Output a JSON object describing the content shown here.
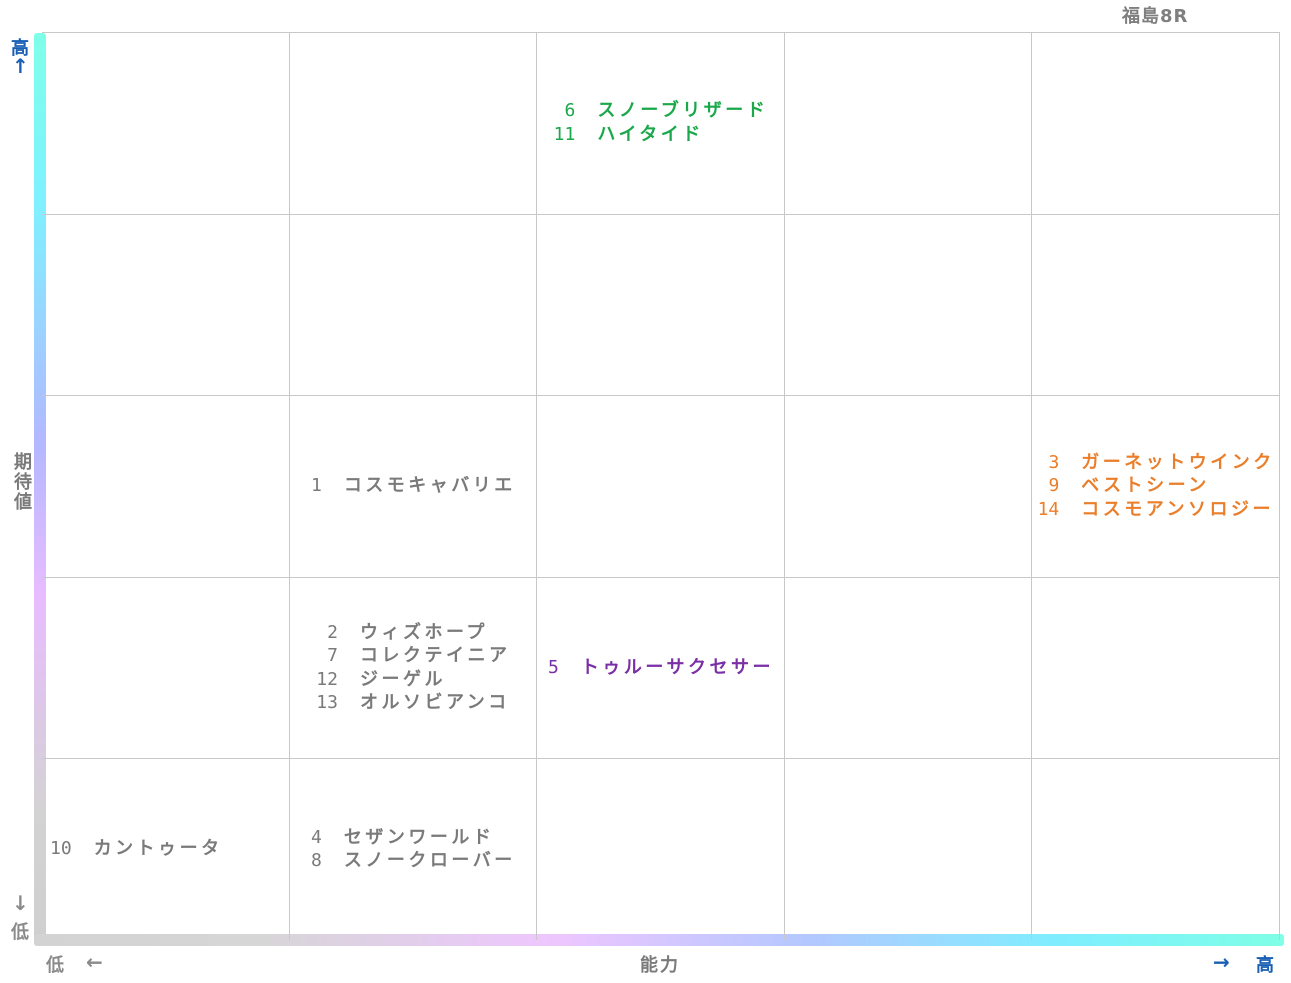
{
  "chart_data": {
    "type": "table",
    "title": "福島8R",
    "xlabel": "能力",
    "ylabel": "期待値",
    "x_axis": {
      "low_label": "低",
      "high_label": "高",
      "low_arrow": "←",
      "high_arrow": "→"
    },
    "y_axis": {
      "low_label": "低",
      "high_label": "高",
      "low_arrow": "↓",
      "high_arrow": "↑"
    },
    "grid": {
      "columns": 5,
      "rows": 5
    },
    "cells": [
      {
        "col": 3,
        "row": 5,
        "color": "#1aa84a",
        "horses": [
          {
            "number": "6",
            "name": "スノーブリザード"
          },
          {
            "number": "11",
            "name": "ハイタイド"
          }
        ]
      },
      {
        "col": 2,
        "row": 3,
        "color": "#7a7a7a",
        "horses": [
          {
            "number": "1",
            "name": "コスモキャバリエ"
          }
        ]
      },
      {
        "col": 5,
        "row": 3,
        "color": "#ea7e2a",
        "horses": [
          {
            "number": "3",
            "name": "ガーネットウインク"
          },
          {
            "number": "9",
            "name": "ベストシーン"
          },
          {
            "number": "14",
            "name": "コスモアンソロジー"
          }
        ]
      },
      {
        "col": 2,
        "row": 2,
        "color": "#7a7a7a",
        "horses": [
          {
            "number": "2",
            "name": "ウィズホープ"
          },
          {
            "number": "7",
            "name": "コレクテイニア"
          },
          {
            "number": "12",
            "name": "ジーゲル"
          },
          {
            "number": "13",
            "name": "オルソビアンコ"
          }
        ]
      },
      {
        "col": 3,
        "row": 2,
        "color": "#7a2fa6",
        "horses": [
          {
            "number": "5",
            "name": "トゥルーサクセサー"
          }
        ]
      },
      {
        "col": 1,
        "row": 1,
        "color": "#7a7a7a",
        "horses": [
          {
            "number": "10",
            "name": "カントゥータ"
          }
        ]
      },
      {
        "col": 2,
        "row": 1,
        "color": "#7a7a7a",
        "horses": [
          {
            "number": "4",
            "name": "セザンワールド"
          },
          {
            "number": "8",
            "name": "スノークローバー"
          }
        ]
      }
    ],
    "colors": {
      "high_label": "#1a5fb4",
      "low_label": "#8a8a8a",
      "grid": "#c8c8c8"
    }
  }
}
